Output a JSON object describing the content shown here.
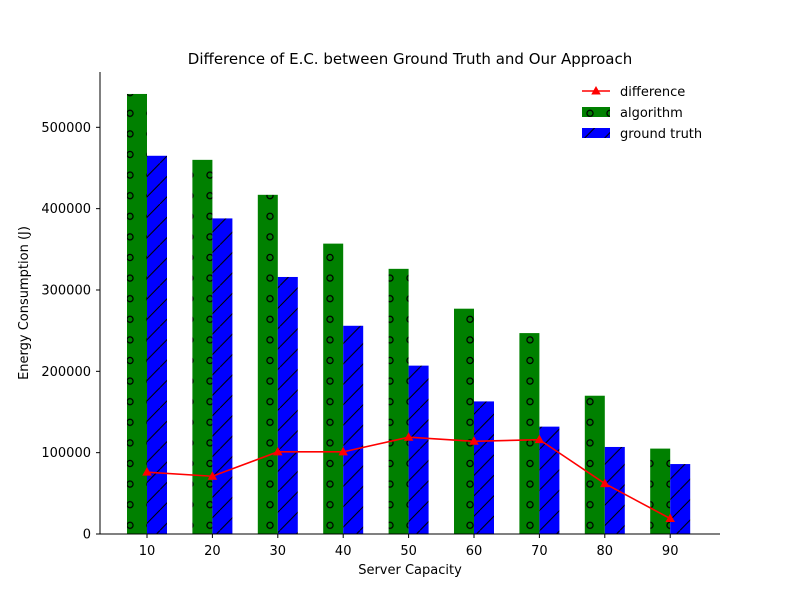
{
  "chart_data": {
    "type": "bar",
    "title": "Difference of E.C. between Ground Truth and Our Approach",
    "xlabel": "Server Capacity",
    "ylabel": "Energy Consumption (J)",
    "categories": [
      "10",
      "20",
      "30",
      "40",
      "50",
      "60",
      "70",
      "80",
      "90"
    ],
    "ylim": [
      0,
      568000
    ],
    "yticks": [
      0,
      100000,
      200000,
      300000,
      400000,
      500000
    ],
    "ytick_labels": [
      "0",
      "100000",
      "200000",
      "300000",
      "400000",
      "500000"
    ],
    "legend_position": "top-right",
    "series": [
      {
        "name": "algorithm",
        "kind": "bar",
        "pattern": "circles",
        "color": "#008000",
        "values": [
          541000,
          460000,
          417000,
          357000,
          326000,
          277000,
          247000,
          170000,
          105000
        ]
      },
      {
        "name": "ground truth",
        "kind": "bar",
        "pattern": "diagonal",
        "color": "#0000ff",
        "values": [
          465000,
          388000,
          316000,
          256000,
          207000,
          163000,
          132000,
          107000,
          86000
        ]
      },
      {
        "name": "difference",
        "kind": "line",
        "marker": "triangle",
        "color": "#ff0000",
        "values": [
          76000,
          71000,
          101000,
          101000,
          119000,
          114000,
          116000,
          62000,
          19000
        ]
      }
    ]
  }
}
